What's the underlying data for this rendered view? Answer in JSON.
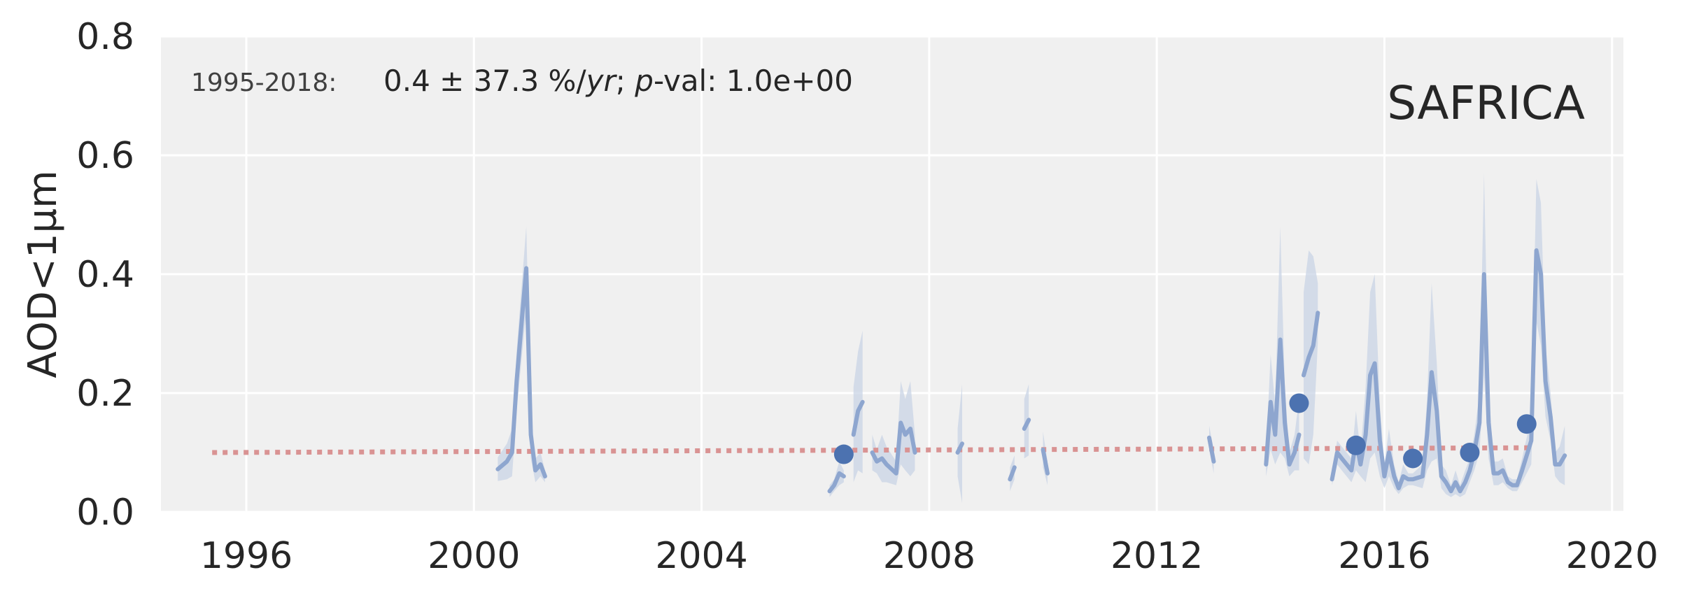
{
  "chart_data": {
    "type": "line",
    "ylabel": "AOD<1µm",
    "xlabel": "",
    "region": "SAFRICA",
    "annotation": {
      "period": "1995-2018:",
      "trend_value": "0.4 ± 37.3 %/",
      "trend_unit": "yr",
      "pval_label": "p",
      "pval_rest": "-val: 1.0e+00"
    },
    "xlim": [
      1994.5,
      2020.2
    ],
    "ylim": [
      0.0,
      0.8
    ],
    "x_ticks": [
      1996,
      2000,
      2004,
      2008,
      2012,
      2016,
      2020
    ],
    "x_tick_labels": [
      "1996",
      "2000",
      "2004",
      "2008",
      "2012",
      "2016",
      "2020"
    ],
    "y_ticks": [
      0.0,
      0.2,
      0.4,
      0.6,
      0.8
    ],
    "y_tick_labels": [
      "0.0",
      "0.2",
      "0.4",
      "0.6",
      "0.8"
    ],
    "grid": true,
    "colors": {
      "background": "#f0f0f0",
      "grid": "#ffffff",
      "line": "#8ea6cf",
      "band": "#c9d4e6",
      "points": "#4c72b0",
      "trend": "#d99393",
      "text": "#262626"
    },
    "monthly_segments": [
      [
        [
          2000.42,
          0.072
        ],
        [
          2000.58,
          0.085
        ],
        [
          2000.67,
          0.1
        ],
        [
          2000.75,
          0.22
        ],
        [
          2000.83,
          0.31
        ],
        [
          2000.92,
          0.41
        ],
        [
          2001.0,
          0.13
        ],
        [
          2001.08,
          0.07
        ],
        [
          2001.17,
          0.08
        ],
        [
          2001.25,
          0.06
        ]
      ],
      [
        [
          2006.25,
          0.035
        ],
        [
          2006.33,
          0.045
        ],
        [
          2006.42,
          0.065
        ],
        [
          2006.5,
          0.06
        ]
      ],
      [
        [
          2006.67,
          0.13
        ],
        [
          2006.75,
          0.17
        ],
        [
          2006.83,
          0.185
        ]
      ],
      [
        [
          2007.0,
          0.1
        ],
        [
          2007.08,
          0.085
        ],
        [
          2007.17,
          0.09
        ],
        [
          2007.25,
          0.08
        ],
        [
          2007.42,
          0.065
        ],
        [
          2007.5,
          0.15
        ],
        [
          2007.58,
          0.13
        ],
        [
          2007.67,
          0.14
        ],
        [
          2007.75,
          0.1
        ]
      ],
      [
        [
          2008.5,
          0.1
        ],
        [
          2008.58,
          0.115
        ]
      ],
      [
        [
          2009.42,
          0.055
        ],
        [
          2009.5,
          0.075
        ]
      ],
      [
        [
          2009.67,
          0.14
        ],
        [
          2009.75,
          0.155
        ]
      ],
      [
        [
          2010.0,
          0.105
        ],
        [
          2010.08,
          0.065
        ]
      ],
      [
        [
          2012.92,
          0.125
        ],
        [
          2013.0,
          0.085
        ]
      ],
      [
        [
          2013.92,
          0.08
        ],
        [
          2014.0,
          0.185
        ],
        [
          2014.08,
          0.13
        ],
        [
          2014.17,
          0.29
        ],
        [
          2014.25,
          0.15
        ],
        [
          2014.33,
          0.08
        ],
        [
          2014.42,
          0.1
        ],
        [
          2014.5,
          0.13
        ]
      ],
      [
        [
          2014.58,
          0.23
        ],
        [
          2014.67,
          0.26
        ],
        [
          2014.75,
          0.28
        ],
        [
          2014.83,
          0.335
        ]
      ],
      [
        [
          2015.08,
          0.055
        ],
        [
          2015.17,
          0.1
        ],
        [
          2015.25,
          0.09
        ],
        [
          2015.42,
          0.07
        ],
        [
          2015.5,
          0.12
        ],
        [
          2015.58,
          0.08
        ],
        [
          2015.67,
          0.13
        ],
        [
          2015.75,
          0.23
        ],
        [
          2015.83,
          0.25
        ],
        [
          2015.92,
          0.12
        ],
        [
          2016.0,
          0.06
        ],
        [
          2016.08,
          0.1
        ],
        [
          2016.17,
          0.06
        ],
        [
          2016.25,
          0.04
        ],
        [
          2016.33,
          0.06
        ],
        [
          2016.42,
          0.055
        ],
        [
          2016.5,
          0.055
        ],
        [
          2016.67,
          0.06
        ],
        [
          2016.75,
          0.13
        ],
        [
          2016.83,
          0.235
        ],
        [
          2016.92,
          0.17
        ],
        [
          2017.0,
          0.06
        ],
        [
          2017.08,
          0.05
        ],
        [
          2017.17,
          0.035
        ],
        [
          2017.25,
          0.05
        ],
        [
          2017.33,
          0.035
        ],
        [
          2017.42,
          0.05
        ],
        [
          2017.5,
          0.07
        ],
        [
          2017.58,
          0.1
        ],
        [
          2017.67,
          0.15
        ],
        [
          2017.75,
          0.4
        ],
        [
          2017.83,
          0.15
        ],
        [
          2017.92,
          0.065
        ],
        [
          2018.0,
          0.065
        ],
        [
          2018.08,
          0.07
        ],
        [
          2018.17,
          0.05
        ],
        [
          2018.25,
          0.045
        ],
        [
          2018.33,
          0.045
        ],
        [
          2018.42,
          0.07
        ],
        [
          2018.58,
          0.12
        ],
        [
          2018.67,
          0.44
        ],
        [
          2018.75,
          0.4
        ],
        [
          2018.83,
          0.22
        ],
        [
          2018.92,
          0.16
        ],
        [
          2019.0,
          0.08
        ],
        [
          2019.08,
          0.08
        ],
        [
          2019.17,
          0.095
        ]
      ]
    ],
    "band_halfwidth": [
      [
        0.02,
        0.03,
        0.04,
        0.05,
        0.06,
        0.07,
        0.04,
        0.02,
        0.02,
        0.01
      ],
      [
        0.01,
        0.01,
        0.02,
        0.01
      ],
      [
        0.08,
        0.1,
        0.12
      ],
      [
        0.03,
        0.02,
        0.04,
        0.03,
        0.02,
        0.07,
        0.06,
        0.08,
        0.03
      ],
      [
        0.04,
        0.1
      ],
      [
        0.02,
        0.02
      ],
      [
        0.05,
        0.06
      ],
      [
        0.03,
        0.02
      ],
      [
        0.02,
        0.02
      ],
      [
        0.02,
        0.08,
        0.05,
        0.19,
        0.06,
        0.02,
        0.03,
        0.06
      ],
      [
        0.14,
        0.18,
        0.15,
        0.05
      ],
      [
        0.01,
        0.02,
        0.02,
        0.02,
        0.05,
        0.02,
        0.08,
        0.14,
        0.15,
        0.06,
        0.02,
        0.04,
        0.02,
        0.01,
        0.02,
        0.01,
        0.01,
        0.02,
        0.06,
        0.15,
        0.08,
        0.02,
        0.02,
        0.01,
        0.02,
        0.01,
        0.02,
        0.02,
        0.03,
        0.05,
        0.17,
        0.06,
        0.02,
        0.02,
        0.02,
        0.01,
        0.01,
        0.01,
        0.02,
        0.04,
        0.12,
        0.12,
        0.06,
        0.04,
        0.02,
        0.03,
        0.05
      ]
    ],
    "annual_points": [
      [
        2006.5,
        0.097
      ],
      [
        2014.5,
        0.183
      ],
      [
        2015.5,
        0.112
      ],
      [
        2016.5,
        0.09
      ],
      [
        2017.5,
        0.1
      ],
      [
        2018.5,
        0.148
      ]
    ],
    "trend_line": [
      [
        1995.4,
        0.1
      ],
      [
        2018.6,
        0.108
      ]
    ]
  }
}
